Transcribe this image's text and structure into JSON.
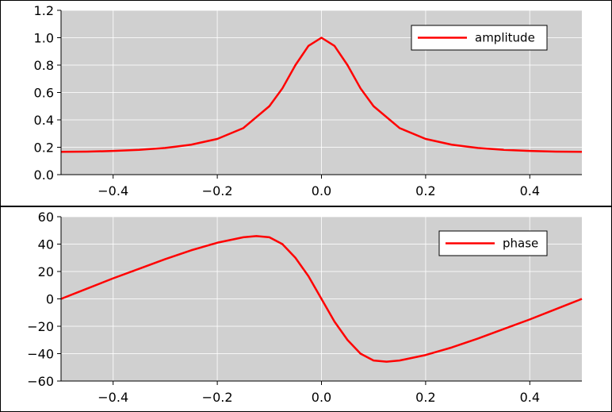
{
  "chart_data": [
    {
      "type": "line",
      "title": "",
      "xlabel": "",
      "ylabel": "",
      "xlim": [
        -0.5,
        0.5
      ],
      "ylim": [
        0.0,
        1.2
      ],
      "grid": true,
      "legend_position": "top-right",
      "background": "#d0d0d0",
      "x_ticks": [
        -0.4,
        -0.2,
        0.0,
        0.2,
        0.4
      ],
      "x_tick_labels": [
        "−0.4",
        "−0.2",
        "0.0",
        "0.2",
        "0.4"
      ],
      "y_ticks": [
        0.0,
        0.2,
        0.4,
        0.6,
        0.8,
        1.0,
        1.2
      ],
      "y_tick_labels": [
        "0.0",
        "0.2",
        "0.4",
        "0.6",
        "0.8",
        "1.0",
        "1.2"
      ],
      "series": [
        {
          "name": "amplitude",
          "color": "#ff0000",
          "x": [
            -0.5,
            -0.45,
            -0.4,
            -0.35,
            -0.3,
            -0.25,
            -0.2,
            -0.15,
            -0.1,
            -0.075,
            -0.05,
            -0.025,
            0.0,
            0.025,
            0.05,
            0.075,
            0.1,
            0.15,
            0.2,
            0.25,
            0.3,
            0.35,
            0.4,
            0.45,
            0.5
          ],
          "y": [
            0.167,
            0.168,
            0.173,
            0.181,
            0.195,
            0.219,
            0.261,
            0.34,
            0.5,
            0.63,
            0.8,
            0.94,
            1.0,
            0.94,
            0.8,
            0.63,
            0.5,
            0.34,
            0.261,
            0.219,
            0.195,
            0.181,
            0.173,
            0.168,
            0.167
          ]
        }
      ]
    },
    {
      "type": "line",
      "title": "",
      "xlabel": "",
      "ylabel": "",
      "xlim": [
        -0.5,
        0.5
      ],
      "ylim": [
        -60,
        60
      ],
      "grid": true,
      "legend_position": "top-right",
      "background": "#d0d0d0",
      "x_ticks": [
        -0.4,
        -0.2,
        0.0,
        0.2,
        0.4
      ],
      "x_tick_labels": [
        "−0.4",
        "−0.2",
        "0.0",
        "0.2",
        "0.4"
      ],
      "y_ticks": [
        -60,
        -40,
        -20,
        0,
        20,
        40,
        60
      ],
      "y_tick_labels": [
        "−60",
        "−40",
        "−20",
        "0",
        "20",
        "40",
        "60"
      ],
      "series": [
        {
          "name": "phase",
          "color": "#ff0000",
          "x": [
            -0.5,
            -0.45,
            -0.4,
            -0.35,
            -0.3,
            -0.25,
            -0.2,
            -0.15,
            -0.125,
            -0.1,
            -0.075,
            -0.05,
            -0.025,
            0.0,
            0.025,
            0.05,
            0.075,
            0.1,
            0.125,
            0.15,
            0.2,
            0.25,
            0.3,
            0.35,
            0.4,
            0.45,
            0.5
          ],
          "y": [
            0.0,
            7.5,
            15.0,
            22.0,
            29.0,
            35.5,
            41.0,
            45.0,
            45.9,
            45.0,
            40.0,
            30.0,
            16.6,
            0.0,
            -16.6,
            -30.0,
            -40.0,
            -45.0,
            -45.9,
            -45.0,
            -41.0,
            -35.5,
            -29.0,
            -22.0,
            -15.0,
            -7.5,
            0.0
          ]
        }
      ]
    }
  ]
}
